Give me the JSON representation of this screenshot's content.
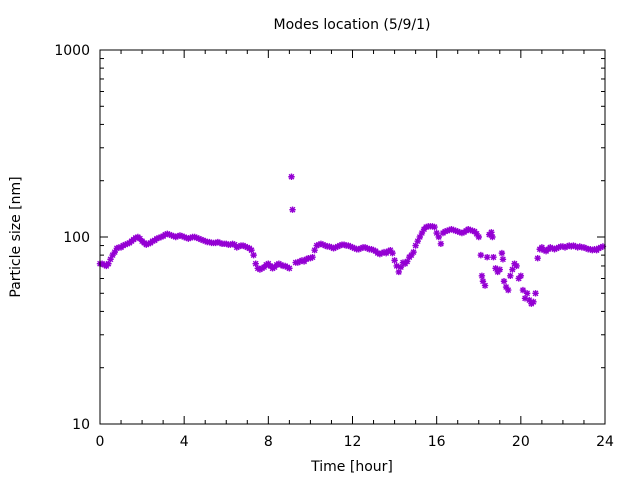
{
  "chart_data": {
    "type": "scatter",
    "title": "Modes location (5/9/1)",
    "xlabel": "Time [hour]",
    "ylabel": "Particle size [nm]",
    "xlim": [
      0,
      24
    ],
    "ylim": [
      10,
      1000
    ],
    "yscale": "log",
    "xticks": [
      0,
      4,
      8,
      12,
      16,
      20,
      24
    ],
    "xtick_labels": [
      "0",
      "4",
      "8",
      "12",
      "16",
      "20",
      "24"
    ],
    "yticks": [
      10,
      100,
      1000
    ],
    "ytick_labels": [
      "10",
      "100",
      "1000"
    ],
    "grid": false,
    "legend": "none",
    "marker_color": "#9400d3",
    "series": [
      {
        "points": [
          [
            0.0,
            72
          ],
          [
            0.1,
            72
          ],
          [
            0.2,
            71
          ],
          [
            0.3,
            70
          ],
          [
            0.4,
            72
          ],
          [
            0.5,
            76
          ],
          [
            0.6,
            80
          ],
          [
            0.7,
            83
          ],
          [
            0.8,
            87
          ],
          [
            0.9,
            88
          ],
          [
            1.0,
            88
          ],
          [
            1.1,
            90
          ],
          [
            1.2,
            91
          ],
          [
            1.3,
            92
          ],
          [
            1.4,
            93
          ],
          [
            1.5,
            95
          ],
          [
            1.6,
            97
          ],
          [
            1.7,
            99
          ],
          [
            1.8,
            100
          ],
          [
            1.9,
            98
          ],
          [
            2.0,
            95
          ],
          [
            2.1,
            93
          ],
          [
            2.2,
            91
          ],
          [
            2.3,
            92
          ],
          [
            2.4,
            93
          ],
          [
            2.5,
            95
          ],
          [
            2.6,
            96
          ],
          [
            2.7,
            98
          ],
          [
            2.8,
            99
          ],
          [
            2.9,
            100
          ],
          [
            3.0,
            101
          ],
          [
            3.1,
            103
          ],
          [
            3.2,
            104
          ],
          [
            3.3,
            103
          ],
          [
            3.4,
            102
          ],
          [
            3.5,
            101
          ],
          [
            3.6,
            100
          ],
          [
            3.7,
            101
          ],
          [
            3.8,
            102
          ],
          [
            3.9,
            101
          ],
          [
            4.0,
            100
          ],
          [
            4.1,
            99
          ],
          [
            4.2,
            98
          ],
          [
            4.3,
            99
          ],
          [
            4.4,
            100
          ],
          [
            4.5,
            100
          ],
          [
            4.6,
            99
          ],
          [
            4.7,
            98
          ],
          [
            4.8,
            97
          ],
          [
            4.9,
            96
          ],
          [
            5.0,
            95
          ],
          [
            5.1,
            94
          ],
          [
            5.2,
            94
          ],
          [
            5.3,
            93
          ],
          [
            5.4,
            93
          ],
          [
            5.5,
            93
          ],
          [
            5.6,
            94
          ],
          [
            5.7,
            93
          ],
          [
            5.8,
            92
          ],
          [
            5.9,
            92
          ],
          [
            6.0,
            92
          ],
          [
            6.1,
            91
          ],
          [
            6.2,
            91
          ],
          [
            6.3,
            92
          ],
          [
            6.4,
            91
          ],
          [
            6.5,
            88
          ],
          [
            6.6,
            89
          ],
          [
            6.7,
            90
          ],
          [
            6.8,
            90
          ],
          [
            6.9,
            89
          ],
          [
            7.0,
            88
          ],
          [
            7.1,
            87
          ],
          [
            7.2,
            85
          ],
          [
            7.3,
            80
          ],
          [
            7.4,
            72
          ],
          [
            7.5,
            68
          ],
          [
            7.6,
            67
          ],
          [
            7.7,
            68
          ],
          [
            7.8,
            69
          ],
          [
            7.9,
            71
          ],
          [
            8.0,
            72
          ],
          [
            8.1,
            70
          ],
          [
            8.2,
            68
          ],
          [
            8.3,
            69
          ],
          [
            8.4,
            71
          ],
          [
            8.5,
            72
          ],
          [
            8.6,
            71
          ],
          [
            8.7,
            70
          ],
          [
            8.8,
            70
          ],
          [
            8.9,
            69
          ],
          [
            9.0,
            68
          ],
          [
            9.1,
            210
          ],
          [
            9.15,
            140
          ],
          [
            9.3,
            73
          ],
          [
            9.4,
            73
          ],
          [
            9.5,
            74
          ],
          [
            9.6,
            75
          ],
          [
            9.7,
            74
          ],
          [
            9.8,
            76
          ],
          [
            9.9,
            77
          ],
          [
            10.0,
            77
          ],
          [
            10.1,
            78
          ],
          [
            10.2,
            85
          ],
          [
            10.3,
            90
          ],
          [
            10.4,
            91
          ],
          [
            10.5,
            92
          ],
          [
            10.6,
            91
          ],
          [
            10.7,
            90
          ],
          [
            10.8,
            89
          ],
          [
            10.9,
            89
          ],
          [
            11.0,
            88
          ],
          [
            11.1,
            87
          ],
          [
            11.2,
            88
          ],
          [
            11.3,
            89
          ],
          [
            11.4,
            90
          ],
          [
            11.5,
            91
          ],
          [
            11.6,
            91
          ],
          [
            11.7,
            90
          ],
          [
            11.8,
            90
          ],
          [
            11.9,
            89
          ],
          [
            12.0,
            88
          ],
          [
            12.1,
            87
          ],
          [
            12.2,
            86
          ],
          [
            12.3,
            86
          ],
          [
            12.4,
            87
          ],
          [
            12.5,
            88
          ],
          [
            12.6,
            88
          ],
          [
            12.7,
            87
          ],
          [
            12.8,
            86
          ],
          [
            12.9,
            86
          ],
          [
            13.0,
            85
          ],
          [
            13.1,
            84
          ],
          [
            13.2,
            82
          ],
          [
            13.3,
            81
          ],
          [
            13.4,
            82
          ],
          [
            13.5,
            83
          ],
          [
            13.6,
            82
          ],
          [
            13.7,
            84
          ],
          [
            13.8,
            85
          ],
          [
            13.9,
            82
          ],
          [
            14.0,
            75
          ],
          [
            14.1,
            70
          ],
          [
            14.2,
            65
          ],
          [
            14.3,
            69
          ],
          [
            14.4,
            73
          ],
          [
            14.5,
            72
          ],
          [
            14.6,
            74
          ],
          [
            14.7,
            78
          ],
          [
            14.8,
            80
          ],
          [
            14.9,
            83
          ],
          [
            15.0,
            90
          ],
          [
            15.1,
            95
          ],
          [
            15.2,
            100
          ],
          [
            15.3,
            105
          ],
          [
            15.4,
            110
          ],
          [
            15.5,
            113
          ],
          [
            15.6,
            114
          ],
          [
            15.7,
            114
          ],
          [
            15.8,
            114
          ],
          [
            15.9,
            113
          ],
          [
            16.0,
            105
          ],
          [
            16.1,
            100
          ],
          [
            16.2,
            92
          ],
          [
            16.3,
            105
          ],
          [
            16.4,
            107
          ],
          [
            16.5,
            108
          ],
          [
            16.6,
            109
          ],
          [
            16.7,
            110
          ],
          [
            16.8,
            109
          ],
          [
            16.9,
            108
          ],
          [
            17.0,
            107
          ],
          [
            17.1,
            106
          ],
          [
            17.2,
            105
          ],
          [
            17.3,
            106
          ],
          [
            17.4,
            108
          ],
          [
            17.5,
            110
          ],
          [
            17.6,
            109
          ],
          [
            17.7,
            108
          ],
          [
            17.8,
            107
          ],
          [
            17.9,
            104
          ],
          [
            18.0,
            100
          ],
          [
            18.1,
            80
          ],
          [
            18.15,
            62
          ],
          [
            18.2,
            58
          ],
          [
            18.3,
            55
          ],
          [
            18.4,
            78
          ],
          [
            18.5,
            103
          ],
          [
            18.6,
            106
          ],
          [
            18.65,
            100
          ],
          [
            18.7,
            78
          ],
          [
            18.8,
            68
          ],
          [
            18.9,
            65
          ],
          [
            19.0,
            67
          ],
          [
            19.1,
            82
          ],
          [
            19.15,
            76
          ],
          [
            19.2,
            58
          ],
          [
            19.3,
            54
          ],
          [
            19.4,
            52
          ],
          [
            19.5,
            62
          ],
          [
            19.6,
            67
          ],
          [
            19.7,
            72
          ],
          [
            19.8,
            70
          ],
          [
            19.9,
            60
          ],
          [
            20.0,
            62
          ],
          [
            20.1,
            52
          ],
          [
            20.2,
            47
          ],
          [
            20.3,
            50
          ],
          [
            20.4,
            46
          ],
          [
            20.5,
            44
          ],
          [
            20.6,
            45
          ],
          [
            20.7,
            50
          ],
          [
            20.8,
            77
          ],
          [
            20.9,
            86
          ],
          [
            21.0,
            88
          ],
          [
            21.1,
            85
          ],
          [
            21.2,
            84
          ],
          [
            21.3,
            86
          ],
          [
            21.4,
            88
          ],
          [
            21.5,
            87
          ],
          [
            21.6,
            86
          ],
          [
            21.7,
            87
          ],
          [
            21.8,
            88
          ],
          [
            21.9,
            89
          ],
          [
            22.0,
            89
          ],
          [
            22.1,
            88
          ],
          [
            22.2,
            89
          ],
          [
            22.3,
            90
          ],
          [
            22.4,
            89
          ],
          [
            22.5,
            90
          ],
          [
            22.6,
            89
          ],
          [
            22.7,
            88
          ],
          [
            22.8,
            89
          ],
          [
            22.9,
            88
          ],
          [
            23.0,
            88
          ],
          [
            23.1,
            87
          ],
          [
            23.2,
            86
          ],
          [
            23.3,
            86
          ],
          [
            23.4,
            85
          ],
          [
            23.5,
            86
          ],
          [
            23.6,
            85
          ],
          [
            23.7,
            87
          ],
          [
            23.8,
            88
          ],
          [
            23.9,
            89
          ]
        ]
      }
    ]
  }
}
